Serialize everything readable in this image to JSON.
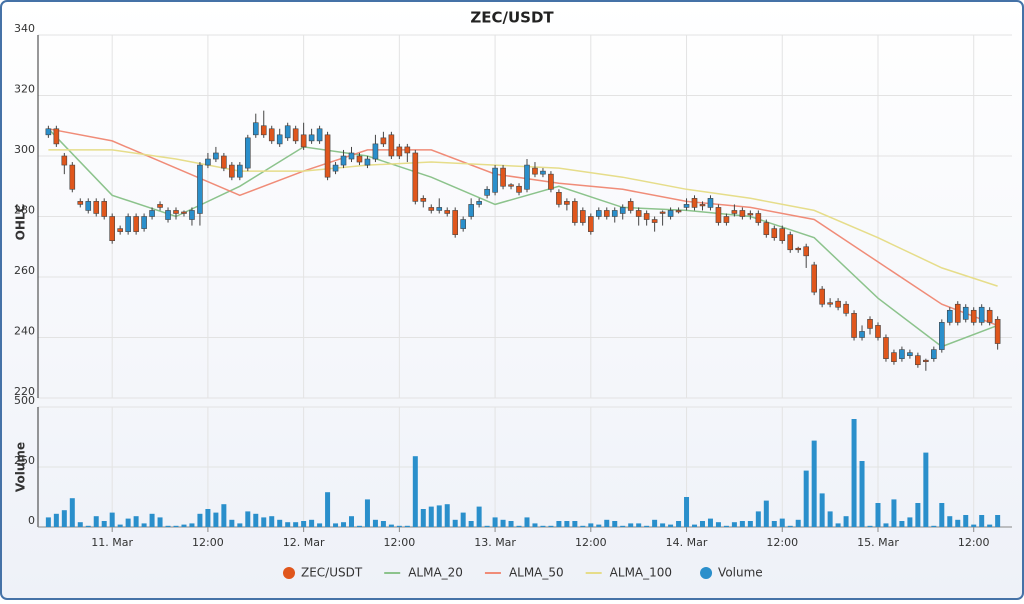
{
  "chart_data": {
    "type": "candlestick",
    "title": "ZEC/USDT",
    "ylabel": "OHLC",
    "y2label": "Volume",
    "xlim": [
      -9.3,
      112.8
    ],
    "xticks": [
      {
        "value": 0,
        "label": "11. Mar"
      },
      {
        "value": 12,
        "label": "12:00"
      },
      {
        "value": 24,
        "label": "12. Mar"
      },
      {
        "value": 36,
        "label": "12:00"
      },
      {
        "value": 48,
        "label": "13. Mar"
      },
      {
        "value": 60,
        "label": "12:00"
      },
      {
        "value": 72,
        "label": "14. Mar"
      },
      {
        "value": 84,
        "label": "12:00"
      },
      {
        "value": 96,
        "label": "15. Mar"
      },
      {
        "value": 108,
        "label": "12:00"
      }
    ],
    "ylim": [
      220,
      340
    ],
    "yticks": [
      220,
      240,
      260,
      280,
      300,
      320,
      340
    ],
    "y2lim": [
      0,
      500
    ],
    "y2ticks": [
      0,
      250,
      500
    ],
    "grid": true,
    "legend": "bottom",
    "x": [
      -8,
      -7,
      -6,
      -5,
      -4,
      -3,
      -2,
      -1,
      0,
      1,
      2,
      3,
      4,
      5,
      6,
      7,
      8,
      9,
      10,
      11,
      12,
      13,
      14,
      15,
      16,
      17,
      18,
      19,
      20,
      21,
      22,
      23,
      24,
      25,
      26,
      27,
      28,
      29,
      30,
      31,
      32,
      33,
      34,
      35,
      36,
      37,
      38,
      39,
      40,
      41,
      42,
      43,
      44,
      45,
      46,
      47,
      48,
      49,
      50,
      51,
      52,
      53,
      54,
      55,
      56,
      57,
      58,
      59,
      60,
      61,
      62,
      63,
      64,
      65,
      66,
      67,
      68,
      69,
      70,
      71,
      72,
      73,
      74,
      75,
      76,
      77,
      78,
      79,
      80,
      81,
      82,
      83,
      84,
      85,
      86,
      87,
      88,
      89,
      90,
      91,
      92,
      93,
      94,
      95,
      96,
      97,
      98,
      99,
      100,
      101,
      102,
      103,
      104,
      105,
      106,
      107,
      108,
      109,
      110,
      111
    ],
    "series": [
      {
        "name": "ZEC/USDT",
        "type": "ohlc",
        "color": "#e0561c",
        "up_color": "#2a8fcb",
        "open": [
          307,
          309,
          300,
          297,
          285,
          282,
          285,
          285,
          280,
          276,
          275,
          280,
          276,
          280,
          284,
          279,
          282,
          281.5,
          279,
          281,
          297,
          299,
          300,
          297,
          293,
          296,
          307,
          310,
          309,
          304,
          306,
          309,
          307,
          305,
          305,
          307,
          295,
          297,
          299,
          300,
          297,
          299,
          306,
          307,
          303,
          303,
          301,
          286,
          283,
          282,
          282,
          282,
          276,
          280,
          284,
          287,
          288,
          296,
          290.5,
          290,
          289,
          296,
          294,
          294,
          288,
          285,
          285,
          282,
          280,
          280,
          282,
          280,
          281,
          285,
          282,
          281,
          279,
          281.5,
          280,
          282,
          283,
          286,
          284,
          283,
          283,
          280,
          282,
          282,
          281,
          281,
          278,
          276,
          276,
          274,
          269.5,
          270,
          264,
          256,
          251.5,
          252,
          251,
          248,
          240,
          246,
          244,
          240,
          235,
          233,
          234,
          234,
          232.5,
          233,
          236,
          245,
          251,
          246,
          249,
          245,
          249,
          246
        ],
        "high": [
          310,
          310,
          301,
          298,
          286,
          286,
          286,
          286,
          281,
          277,
          281,
          281,
          281,
          283,
          285,
          283,
          283,
          282,
          283,
          298,
          301,
          303,
          301,
          298,
          298,
          307,
          314,
          315,
          310,
          309,
          311,
          310,
          311,
          309,
          310,
          308,
          298,
          302,
          303,
          301,
          300,
          307,
          308,
          308,
          304,
          304,
          302,
          287,
          284,
          286,
          283,
          283,
          280,
          286,
          286,
          290,
          297,
          297,
          291,
          291,
          299,
          298,
          296,
          295,
          289,
          286,
          286,
          283,
          281,
          283,
          283,
          283,
          284,
          286,
          283,
          282,
          280,
          282,
          283,
          283,
          286,
          287,
          285,
          287,
          284,
          281,
          284,
          283,
          282,
          282,
          279,
          277,
          277,
          275,
          270,
          271,
          265,
          257,
          253,
          253,
          252,
          249,
          244,
          247,
          245,
          241,
          236,
          237,
          236,
          235,
          233,
          237,
          246,
          250,
          252,
          251,
          250,
          251,
          250,
          247
        ],
        "low": [
          306,
          303,
          294,
          288,
          283,
          281,
          280,
          279,
          271,
          274,
          274,
          274,
          275,
          279,
          282,
          278,
          279,
          280,
          277,
          277,
          296,
          298,
          295,
          292,
          292,
          295,
          306,
          306,
          304,
          303,
          305,
          304,
          302,
          304,
          304,
          292,
          294,
          296,
          298,
          297,
          296,
          298,
          303,
          299,
          299,
          298,
          284,
          283,
          281,
          281,
          280,
          273,
          275,
          279,
          283,
          286,
          287,
          289,
          289,
          287,
          288,
          293,
          293,
          288,
          283,
          282,
          277,
          277,
          274,
          279,
          279,
          278,
          279,
          281,
          277,
          277,
          275,
          277,
          279,
          281,
          282,
          282,
          282,
          282,
          277,
          277,
          280,
          279,
          279,
          277,
          273,
          272,
          271,
          268,
          268,
          263,
          254,
          250,
          250,
          249,
          247,
          239,
          239,
          241,
          239,
          232,
          231,
          232,
          233,
          230,
          229,
          232,
          235,
          244,
          244,
          245,
          244,
          244,
          244,
          236
        ],
        "close": [
          309,
          304,
          297,
          289,
          284,
          285,
          281,
          280,
          272,
          275,
          280,
          275,
          280,
          282,
          283,
          282,
          281,
          281,
          282,
          297,
          299,
          301,
          296,
          293,
          297,
          306,
          311,
          307,
          305,
          307,
          310,
          305,
          303,
          307,
          309,
          293,
          297,
          300,
          301,
          298,
          299,
          304,
          304,
          300,
          300,
          301,
          285,
          285,
          282,
          283,
          281,
          274,
          279,
          284,
          285,
          289,
          296,
          290,
          290,
          288,
          297,
          294,
          295,
          289,
          284,
          284,
          278,
          278,
          275,
          282,
          280,
          282,
          283,
          282,
          280,
          279,
          278,
          281,
          282,
          281.5,
          284,
          283,
          283.5,
          286,
          278,
          278,
          281,
          280,
          280.5,
          278,
          274,
          273,
          272,
          269,
          269,
          267,
          255,
          251,
          251,
          250,
          248,
          240,
          242,
          243,
          240,
          233,
          232,
          236,
          235,
          231,
          232,
          236,
          245,
          249,
          245,
          250,
          245,
          250,
          245,
          238
        ]
      },
      {
        "name": "ALMA_20",
        "type": "line",
        "color": "#8cc38c",
        "x": [
          -8,
          0,
          8,
          16,
          24,
          32,
          40,
          48,
          56,
          64,
          72,
          80,
          88,
          96,
          104,
          111
        ],
        "values": [
          309,
          287,
          280,
          290,
          303,
          300,
          293,
          284,
          290,
          283,
          282,
          280,
          273,
          253,
          237,
          244
        ]
      },
      {
        "name": "ALMA_50",
        "type": "line",
        "color": "#f08c78",
        "x": [
          -8,
          0,
          8,
          16,
          24,
          32,
          40,
          48,
          56,
          64,
          72,
          80,
          88,
          96,
          104,
          111
        ],
        "values": [
          309,
          305,
          296,
          287,
          295,
          302,
          302,
          294,
          291,
          289,
          285,
          283,
          279,
          265,
          251,
          244
        ]
      },
      {
        "name": "ALMA_100",
        "type": "line",
        "color": "#e6dd8a",
        "x": [
          -8,
          0,
          8,
          16,
          24,
          32,
          40,
          48,
          56,
          64,
          72,
          80,
          88,
          96,
          104,
          111
        ],
        "values": [
          302,
          302,
          299,
          295,
          295,
          297,
          298,
          297,
          296,
          293,
          289,
          286,
          282,
          273,
          263,
          257
        ]
      },
      {
        "name": "Volume",
        "type": "column",
        "axis": "y2",
        "color": "#2a8fcb",
        "values": [
          40,
          55,
          70,
          120,
          20,
          5,
          45,
          25,
          60,
          10,
          35,
          45,
          15,
          55,
          40,
          5,
          5,
          10,
          15,
          55,
          75,
          60,
          95,
          30,
          15,
          65,
          55,
          40,
          45,
          30,
          20,
          20,
          25,
          30,
          15,
          145,
          15,
          20,
          45,
          5,
          115,
          30,
          25,
          10,
          5,
          5,
          295,
          75,
          85,
          90,
          95,
          30,
          60,
          25,
          85,
          5,
          40,
          30,
          25,
          5,
          40,
          15,
          5,
          5,
          25,
          25,
          25,
          5,
          15,
          10,
          30,
          25,
          5,
          15,
          15,
          5,
          30,
          15,
          10,
          25,
          125,
          10,
          25,
          35,
          20,
          5,
          20,
          25,
          25,
          65,
          110,
          25,
          35,
          5,
          30,
          235,
          360,
          140,
          65,
          15,
          45,
          450,
          275,
          5,
          100,
          15,
          115,
          25,
          40,
          100,
          310,
          5,
          100,
          45,
          30,
          50,
          10,
          50,
          10,
          50
        ]
      }
    ]
  }
}
